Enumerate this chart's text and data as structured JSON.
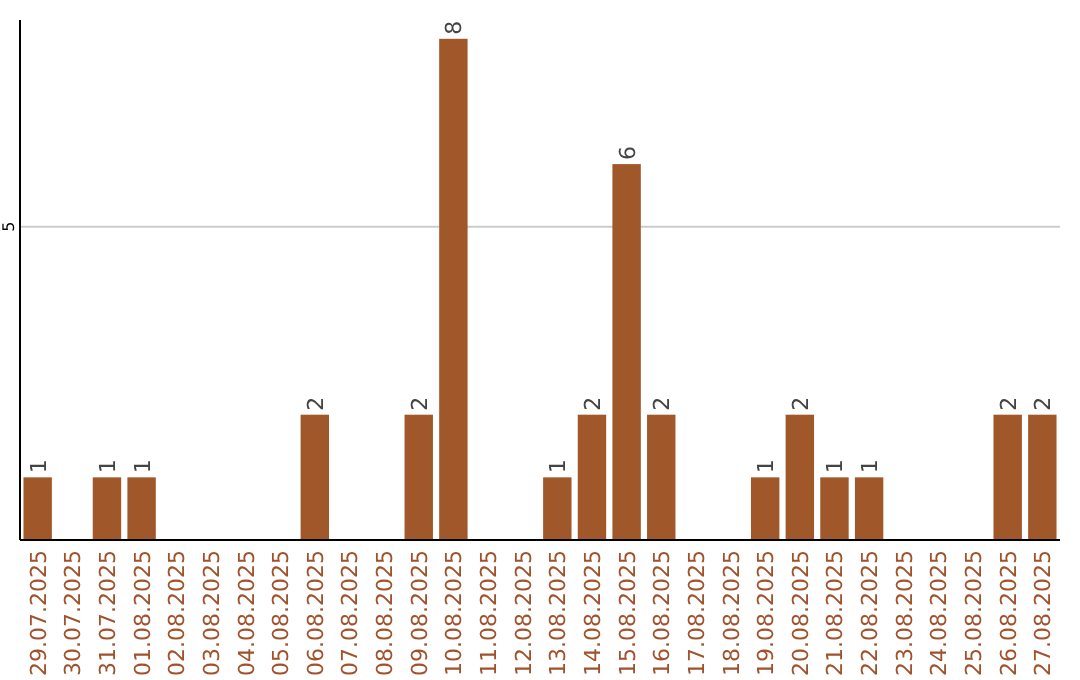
{
  "chart_data": {
    "type": "bar",
    "categories": [
      "29.07.2025",
      "30.07.2025",
      "31.07.2025",
      "01.08.2025",
      "02.08.2025",
      "03.08.2025",
      "04.08.2025",
      "05.08.2025",
      "06.08.2025",
      "07.08.2025",
      "08.08.2025",
      "09.08.2025",
      "10.08.2025",
      "11.08.2025",
      "12.08.2025",
      "13.08.2025",
      "14.08.2025",
      "15.08.2025",
      "16.08.2025",
      "17.08.2025",
      "18.08.2025",
      "19.08.2025",
      "20.08.2025",
      "21.08.2025",
      "22.08.2025",
      "23.08.2025",
      "24.08.2025",
      "25.08.2025",
      "26.08.2025",
      "27.08.2025"
    ],
    "values": [
      1,
      0,
      1,
      1,
      0,
      0,
      0,
      0,
      2,
      0,
      0,
      2,
      8,
      0,
      0,
      1,
      2,
      6,
      2,
      0,
      0,
      1,
      2,
      1,
      1,
      0,
      0,
      0,
      2,
      2
    ],
    "value_labels": [
      "1",
      null,
      "1",
      "1",
      null,
      null,
      null,
      null,
      "2",
      null,
      null,
      "2",
      "8",
      null,
      null,
      "1",
      "2",
      "6",
      "2",
      null,
      null,
      "1",
      "2",
      "1",
      "1",
      null,
      null,
      null,
      "2",
      "2"
    ],
    "color": "#a0582a",
    "ylim": [
      0,
      8.3
    ],
    "yticks": [
      5
    ],
    "grid": "y"
  }
}
